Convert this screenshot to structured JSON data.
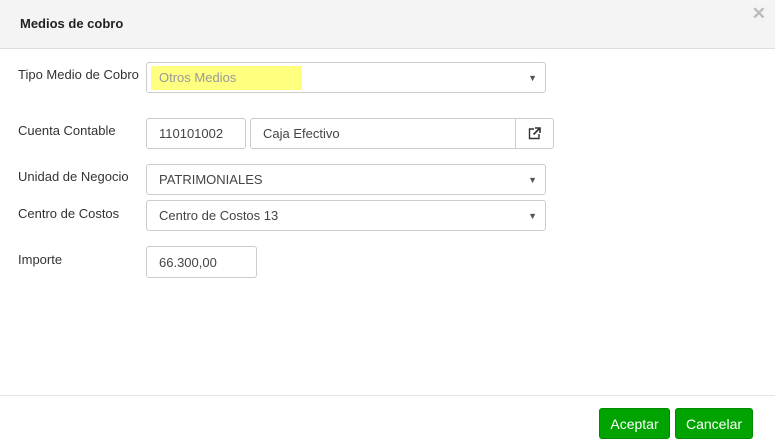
{
  "dialog": {
    "title": "Medios de cobro",
    "close_icon": "close-icon"
  },
  "form": {
    "tipo": {
      "label": "Tipo Medio de Cobro",
      "value": "Otros Medios",
      "highlight": "#ffff80"
    },
    "cuenta": {
      "label": "Cuenta Contable",
      "code": "110101002",
      "name": "Caja Efectivo",
      "icon": "external-link-icon"
    },
    "unidad": {
      "label": "Unidad de Negocio",
      "value": "PATRIMONIALES"
    },
    "centro": {
      "label": "Centro de Costos",
      "value": "Centro de Costos 13"
    },
    "importe": {
      "label": "Importe",
      "value": "66.300,00"
    }
  },
  "footer": {
    "accept_label": "Aceptar",
    "cancel_label": "Cancelar",
    "button_color": "#00a300"
  }
}
